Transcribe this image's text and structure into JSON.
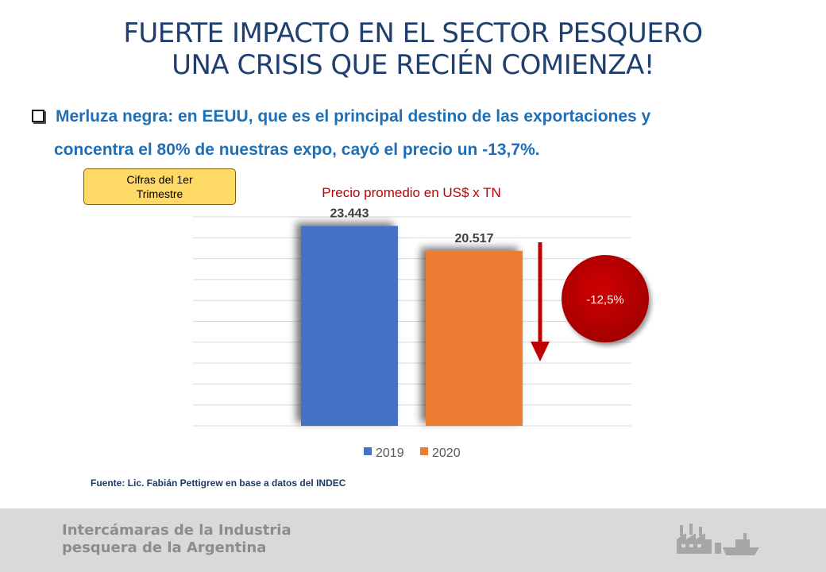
{
  "title": {
    "line1": "FUERTE IMPACTO EN EL SECTOR PESQUERO",
    "line2": "UNA CRISIS QUE RECIÉN COMIENZA!"
  },
  "bullet": {
    "line1": "Merluza negra: en EEUU, que es el principal destino de las exportaciones y",
    "line2": "concentra el 80% de nuestras expo, cayó el precio un -13,7%."
  },
  "badge": {
    "text": "Cifras del 1er Trimestre"
  },
  "chart_data": {
    "type": "bar",
    "title": "Precio promedio en US$ x TN",
    "categories": [
      "2019",
      "2020"
    ],
    "values": [
      23443,
      20517
    ],
    "value_labels": [
      "23.443",
      "20.517"
    ],
    "colors": [
      "#4472c4",
      "#ed7d31"
    ],
    "legend": [
      "2019",
      "2020"
    ],
    "legend_position": "bottom",
    "ylim": [
      0,
      24500
    ],
    "grid": true,
    "annotation": {
      "text": "-12,5%",
      "color": "#c00000",
      "arrow": "down"
    }
  },
  "source": "Fuente: Lic. Fabián Pettigrew en base a datos del INDEC",
  "footer": {
    "line1": "Intercámaras de la Industria",
    "line2": "pesquera de la Argentina",
    "icon": "factory-and-ship-icon"
  }
}
